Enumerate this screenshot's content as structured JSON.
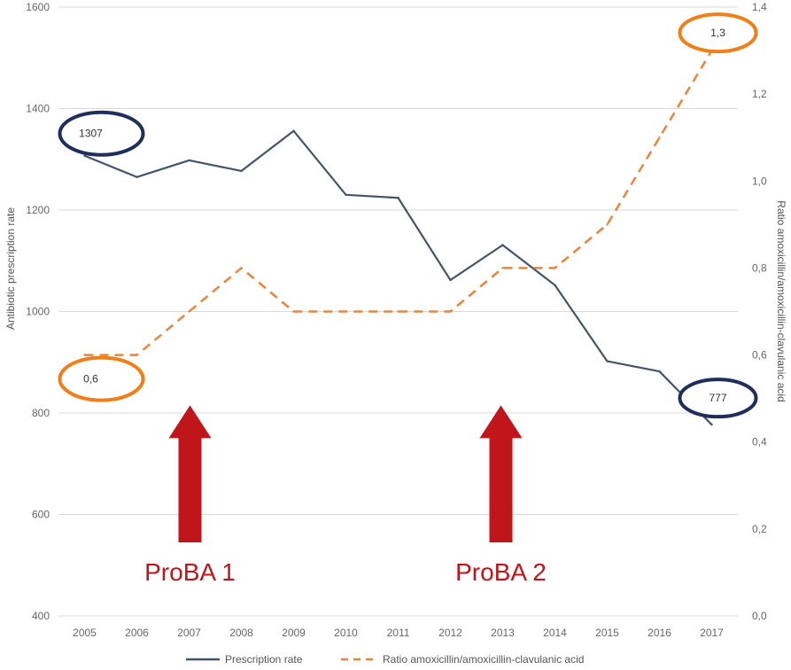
{
  "chart_data": {
    "type": "line",
    "categories": [
      "2005",
      "2006",
      "2007",
      "2008",
      "2009",
      "2010",
      "2011",
      "2012",
      "2013",
      "2014",
      "2015",
      "2016",
      "2017"
    ],
    "series": [
      {
        "name": "Prescription rate",
        "axis": "left",
        "color": "#44546a",
        "dash": "solid",
        "values": [
          1307,
          1265,
          1298,
          1277,
          1356,
          1230,
          1224,
          1062,
          1131,
          1052,
          902,
          882,
          777
        ]
      },
      {
        "name": "Ratio amoxicillin/amoxicillin-clavulanic acid",
        "axis": "right",
        "color": "#e8853c",
        "dash": "dashed",
        "values": [
          0.6,
          0.6,
          0.7,
          0.8,
          0.7,
          0.7,
          0.7,
          0.7,
          0.8,
          0.8,
          0.9,
          1.1,
          1.3
        ]
      }
    ],
    "ylabel": "Antibiotic prescription rate",
    "y2label": "Ratio amoxicillin/amoxicillin-clavulanic acid",
    "ylim": [
      400,
      1600
    ],
    "yticks": [
      "400",
      "600",
      "800",
      "1000",
      "1200",
      "1400",
      "1600"
    ],
    "y2lim": [
      0.0,
      1.4
    ],
    "y2ticks": [
      "0,0",
      "0,2",
      "0,4",
      "0,6",
      "0,8",
      "1,0",
      "1,2",
      "1,4"
    ],
    "grid": "horizontal",
    "legend_position": "bottom",
    "callouts": [
      {
        "label": "1307",
        "series": "Prescription rate",
        "category": "2005",
        "color": "#1f2e5a"
      },
      {
        "label": "777",
        "series": "Prescription rate",
        "category": "2017",
        "color": "#1f2e5a"
      },
      {
        "label": "0,6",
        "series": "Ratio amoxicillin/amoxicillin-clavulanic acid",
        "category": "2005",
        "color": "#f07f1a"
      },
      {
        "label": "1,3",
        "series": "Ratio amoxicillin/amoxicillin-clavulanic acid",
        "category": "2017",
        "color": "#f07f1a"
      }
    ],
    "annotations": [
      {
        "label": "ProBA 1",
        "category": "2007",
        "color": "#c0151b"
      },
      {
        "label": "ProBA 2",
        "category": "2013",
        "color": "#c0151b"
      }
    ]
  }
}
